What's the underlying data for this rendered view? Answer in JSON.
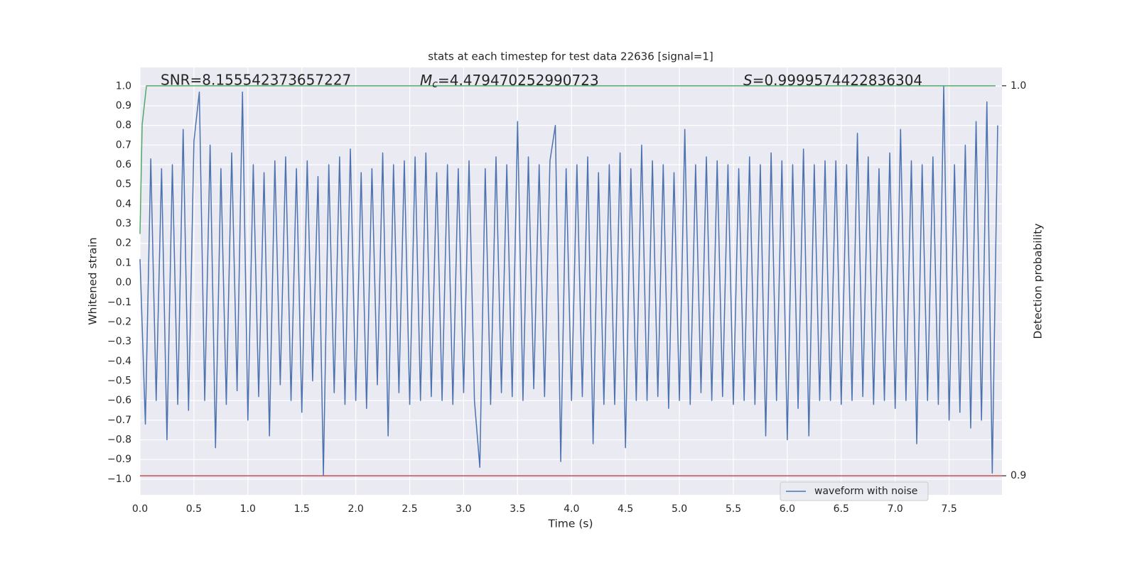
{
  "chart_data": {
    "type": "line",
    "title": "stats at each timestep for test data 22636 [signal=1]",
    "xlabel": "Time (s)",
    "ylabel": "Whitened strain",
    "y2label": "Detection probability",
    "annotations": [
      {
        "text": "SNR=8.155542373657227"
      },
      {
        "symbol": "M",
        "subscript": "c",
        "text": "=4.479470252990723"
      },
      {
        "symbol": "S",
        "text": "=0.9999574422836304"
      }
    ],
    "xlim": [
      0,
      7.99
    ],
    "ylim": [
      -1.08,
      1.095
    ],
    "y2lim": [
      0.8951,
      1.0047
    ],
    "xticks": [
      {
        "value": 0,
        "label": "0.0"
      },
      0.5,
      {
        "value": 1,
        "label": "1.0"
      },
      1.5,
      {
        "value": 2,
        "label": "2.0"
      },
      2.5,
      {
        "value": 3,
        "label": "3.0"
      },
      3.5,
      {
        "value": 4,
        "label": "4.0"
      },
      4.5,
      {
        "value": 5,
        "label": "5.0"
      },
      5.5,
      {
        "value": 6,
        "label": "6.0"
      },
      6.5,
      {
        "value": 7,
        "label": "7.0"
      },
      7.5
    ],
    "yticks": [
      {
        "value": 1,
        "label": "1.0"
      },
      0.9,
      0.8,
      0.7,
      0.6,
      0.5,
      0.4,
      0.3,
      0.2,
      0.1,
      {
        "value": 0,
        "label": "0.0"
      },
      {
        "value": -0.1,
        "label": "−0.1"
      },
      {
        "value": -0.2,
        "label": "−0.2"
      },
      {
        "value": -0.3,
        "label": "−0.3"
      },
      {
        "value": -0.4,
        "label": "−0.4"
      },
      {
        "value": -0.5,
        "label": "−0.5"
      },
      {
        "value": -0.6,
        "label": "−0.6"
      },
      {
        "value": -0.7,
        "label": "−0.7"
      },
      {
        "value": -0.8,
        "label": "−0.8"
      },
      {
        "value": -0.9,
        "label": "−0.9"
      },
      {
        "value": -1,
        "label": "−1.0"
      }
    ],
    "y2ticks": [
      {
        "value": 1,
        "label": "1.0"
      },
      0.9
    ],
    "grid": true,
    "legend": "lower right",
    "series": [
      {
        "name": "waveform with noise",
        "color": "#4c72b0",
        "x": [
          0,
          0.05,
          0.1,
          0.15,
          0.2,
          0.25,
          0.3,
          0.35,
          0.4,
          0.45,
          0.5,
          0.55,
          0.6,
          0.65,
          0.7,
          0.75,
          0.8,
          0.85,
          0.9,
          0.95,
          1,
          1.05,
          1.1,
          1.15,
          1.2,
          1.25,
          1.3,
          1.35,
          1.4,
          1.45,
          1.5,
          1.55,
          1.6,
          1.65,
          1.7,
          1.75,
          1.8,
          1.85,
          1.9,
          1.95,
          2,
          2.05,
          2.1,
          2.15,
          2.2,
          2.25,
          2.3,
          2.35,
          2.4,
          2.45,
          2.5,
          2.55,
          2.6,
          2.65,
          2.7,
          2.75,
          2.8,
          2.85,
          2.9,
          2.95,
          3,
          3.05,
          3.1,
          3.15,
          3.2,
          3.25,
          3.3,
          3.35,
          3.4,
          3.45,
          3.5,
          3.55,
          3.6,
          3.65,
          3.7,
          3.75,
          3.8,
          3.85,
          3.9,
          3.95,
          4,
          4.05,
          4.1,
          4.15,
          4.2,
          4.25,
          4.3,
          4.35,
          4.4,
          4.45,
          4.5,
          4.55,
          4.6,
          4.65,
          4.7,
          4.75,
          4.8,
          4.85,
          4.9,
          4.95,
          5,
          5.05,
          5.1,
          5.15,
          5.2,
          5.25,
          5.3,
          5.35,
          5.4,
          5.45,
          5.5,
          5.55,
          5.6,
          5.65,
          5.7,
          5.75,
          5.8,
          5.85,
          5.9,
          5.95,
          6,
          6.05,
          6.1,
          6.15,
          6.2,
          6.25,
          6.3,
          6.35,
          6.4,
          6.45,
          6.5,
          6.55,
          6.6,
          6.65,
          6.7,
          6.75,
          6.8,
          6.85,
          6.9,
          6.95,
          7,
          7.05,
          7.1,
          7.15,
          7.2,
          7.25,
          7.3,
          7.35,
          7.4,
          7.45,
          7.5,
          7.55,
          7.6,
          7.65,
          7.7,
          7.75,
          7.8,
          7.85,
          7.9,
          7.95
        ],
        "values": [
          0.12,
          -0.72,
          0.63,
          -0.6,
          0.58,
          -0.8,
          0.6,
          -0.62,
          0.78,
          -0.65,
          0.72,
          0.97,
          -0.6,
          0.7,
          -0.84,
          0.58,
          -0.62,
          0.66,
          -0.55,
          0.97,
          -0.7,
          0.6,
          -0.58,
          0.56,
          -0.78,
          0.62,
          -0.52,
          0.64,
          -0.6,
          0.58,
          -0.66,
          0.62,
          -0.5,
          0.54,
          -0.98,
          0.6,
          -0.56,
          0.64,
          -0.62,
          0.68,
          -0.6,
          0.56,
          -0.64,
          0.58,
          -0.52,
          0.66,
          -0.78,
          0.6,
          -0.56,
          0.62,
          -0.62,
          0.64,
          -0.6,
          0.66,
          -0.58,
          0.56,
          -0.6,
          0.6,
          -0.62,
          0.58,
          -0.56,
          0.62,
          -0.6,
          -0.94,
          0.58,
          -0.62,
          0.64,
          -0.56,
          0.6,
          -0.58,
          0.82,
          -0.6,
          0.64,
          -0.54,
          0.6,
          -0.58,
          0.62,
          0.8,
          -0.91,
          0.58,
          -0.6,
          0.6,
          -0.58,
          0.64,
          -0.82,
          0.56,
          -0.62,
          0.6,
          -0.62,
          0.66,
          -0.84,
          0.58,
          -0.6,
          0.7,
          -0.6,
          0.62,
          -0.58,
          0.6,
          -0.64,
          0.56,
          -0.6,
          0.78,
          -0.62,
          0.6,
          -0.56,
          0.64,
          -0.6,
          0.62,
          -0.58,
          0.6,
          -0.62,
          0.58,
          -0.6,
          0.64,
          -0.62,
          0.6,
          -0.78,
          0.66,
          -0.6,
          0.62,
          -0.8,
          0.6,
          -0.64,
          0.68,
          -0.78,
          0.6,
          -0.6,
          0.62,
          -0.6,
          0.62,
          -0.62,
          0.6,
          -0.6,
          0.76,
          -0.58,
          0.64,
          -0.62,
          0.58,
          -0.6,
          0.66,
          -0.64,
          0.78,
          -0.6,
          0.62,
          -0.82,
          0.6,
          -0.6,
          0.64,
          -0.62,
          1.0,
          -0.7,
          0.6,
          -0.66,
          0.7,
          -0.74,
          0.82,
          -0.7,
          0.92,
          -0.97,
          0.8
        ]
      },
      {
        "color": "#55a868",
        "axis": "y2",
        "x": [
          0,
          0.02,
          0.06,
          7.93
        ],
        "values": [
          0.962,
          0.99,
          1.0,
          1.0
        ]
      },
      {
        "color": "#c44e52",
        "axis": "y2",
        "x": [
          0,
          7.99
        ],
        "values": [
          0.9,
          0.9
        ]
      }
    ]
  }
}
